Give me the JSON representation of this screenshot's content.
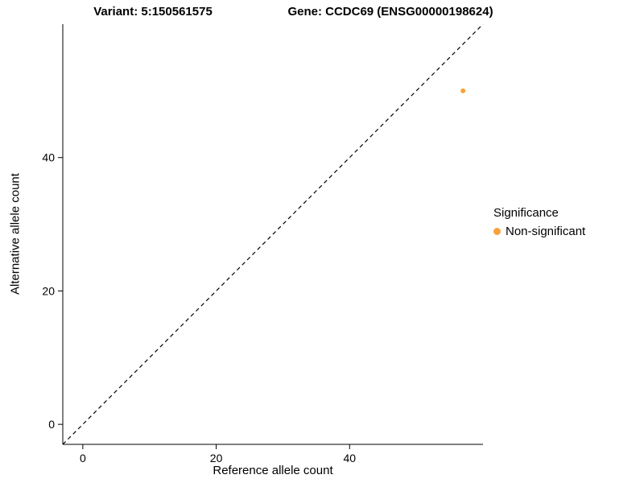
{
  "header": {
    "title_left": "Variant: 5:150561575",
    "title_right": "Gene: CCDC69 (ENSG00000198624)"
  },
  "chart_data": {
    "type": "scatter",
    "title_left": "Variant: 5:150561575",
    "title_right": "Gene: CCDC69 (ENSG00000198624)",
    "xlabel": "Reference allele count",
    "ylabel": "Alternative allele count",
    "xlim": [
      -3,
      60
    ],
    "ylim": [
      -3,
      60
    ],
    "xticks": [
      0,
      20,
      40
    ],
    "yticks": [
      0,
      20,
      40
    ],
    "grid": false,
    "background_color": "#ffffff",
    "axis_color": "#000000",
    "identity_line": {
      "style": "dashed",
      "x1": -3,
      "y1": -3,
      "x2": 60,
      "y2": 60,
      "color": "#000000"
    },
    "series": [
      {
        "name": "Non-significant",
        "color": "#F9A13A",
        "points": [
          {
            "x": 57,
            "y": 50
          }
        ]
      }
    ],
    "legend": {
      "title": "Significance",
      "position": "right",
      "entries": [
        {
          "label": "Non-significant",
          "color": "#F9A13A"
        }
      ]
    }
  }
}
